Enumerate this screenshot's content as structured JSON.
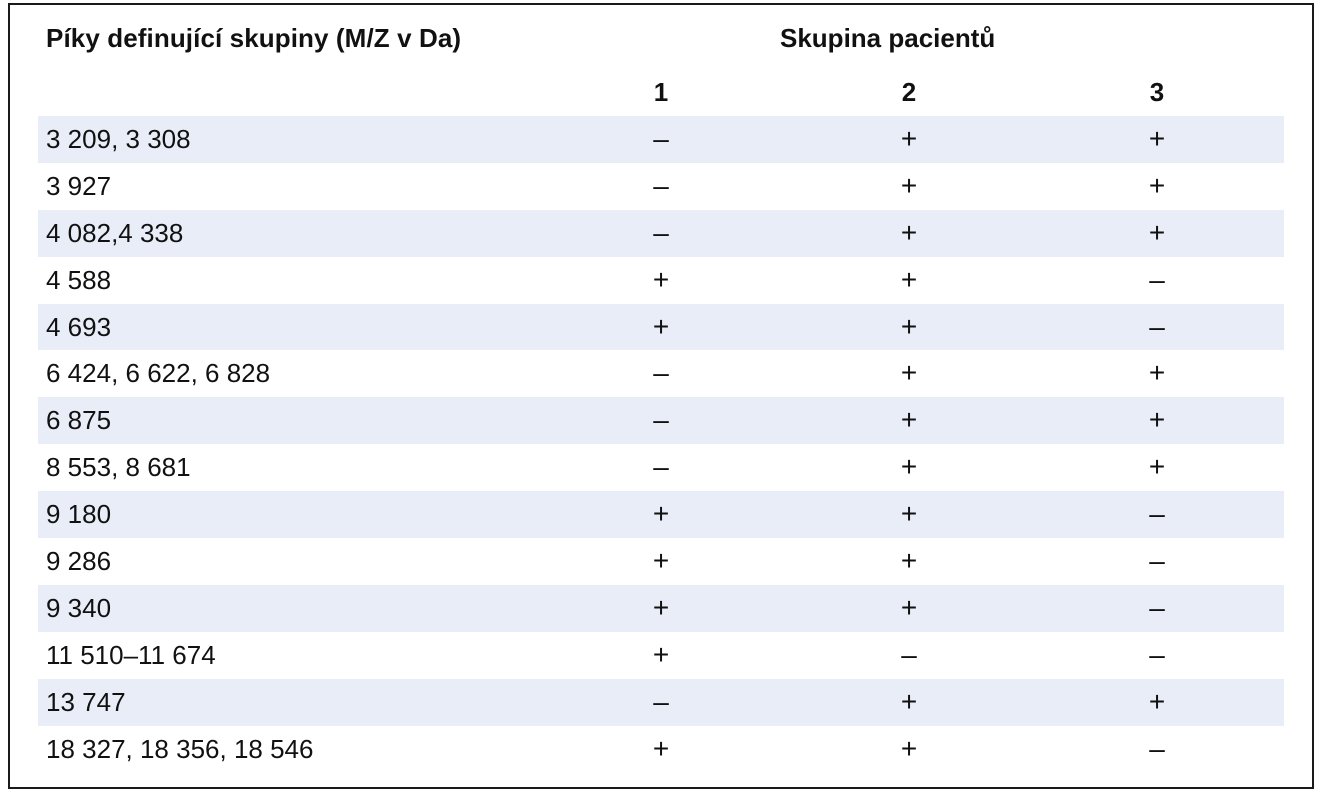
{
  "table": {
    "header_label": "Píky definující skupiny (M/Z v Da)",
    "header_group": "Skupina pacientů",
    "group_columns": [
      "1",
      "2",
      "3"
    ],
    "rows": [
      {
        "peaks": "3 209, 3 308",
        "g1": "–",
        "g2": "+",
        "g3": "+"
      },
      {
        "peaks": "3 927",
        "g1": "–",
        "g2": "+",
        "g3": "+"
      },
      {
        "peaks": "4 082,4 338",
        "g1": "–",
        "g2": "+",
        "g3": "+"
      },
      {
        "peaks": "4 588",
        "g1": "+",
        "g2": "+",
        "g3": "–"
      },
      {
        "peaks": "4 693",
        "g1": "+",
        "g2": "+",
        "g3": "–"
      },
      {
        "peaks": "6 424, 6 622, 6 828",
        "g1": "–",
        "g2": "+",
        "g3": "+"
      },
      {
        "peaks": "6 875",
        "g1": "–",
        "g2": "+",
        "g3": "+"
      },
      {
        "peaks": "8 553, 8 681",
        "g1": "–",
        "g2": "+",
        "g3": "+"
      },
      {
        "peaks": "9 180",
        "g1": "+",
        "g2": "+",
        "g3": "–"
      },
      {
        "peaks": "9 286",
        "g1": "+",
        "g2": "+",
        "g3": "–"
      },
      {
        "peaks": "9 340",
        "g1": "+",
        "g2": "+",
        "g3": "–"
      },
      {
        "peaks": "11 510–11 674",
        "g1": "+",
        "g2": "–",
        "g3": "–"
      },
      {
        "peaks": "13 747",
        "g1": "–",
        "g2": "+",
        "g3": "+"
      },
      {
        "peaks": "18 327, 18 356, 18 546",
        "g1": "+",
        "g2": "+",
        "g3": "–"
      }
    ]
  },
  "colors": {
    "row_shade": "#e9edf7",
    "border": "#1a1a1a",
    "text": "#111111"
  }
}
